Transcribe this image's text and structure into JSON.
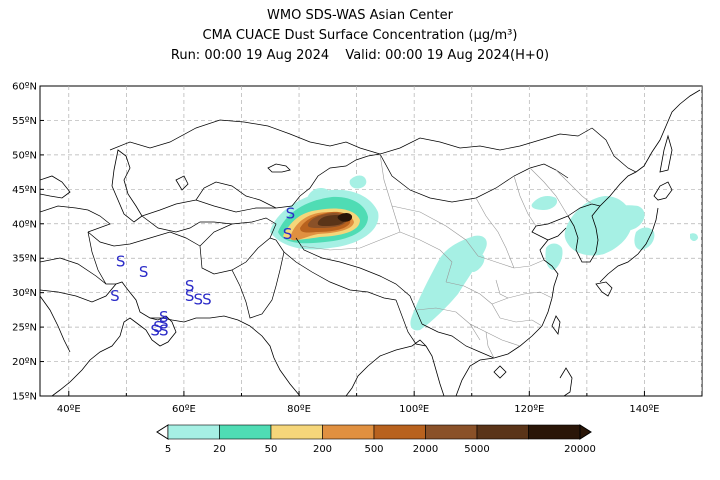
{
  "title": {
    "line1": "WMO SDS-WAS Asian Center",
    "line2": "CMA CUACE Dust Surface Concentration (μg/m³)",
    "run_label": "Run: 00:00 19 Aug 2024",
    "valid_label": "Valid: 00:00 19 Aug 2024(H+0)"
  },
  "map": {
    "lon_range": [
      35,
      150
    ],
    "lat_range": [
      15,
      60
    ],
    "lat_ticks": [
      "60ºN",
      "55ºN",
      "50ºN",
      "45ºN",
      "40ºN",
      "35ºN",
      "30ºN",
      "25ºN",
      "20ºN",
      "15ºN"
    ],
    "lon_ticks": [
      "40ºE",
      "60ºE",
      "80ºE",
      "100ºE",
      "120ºE",
      "140ºE"
    ],
    "grid": true,
    "dust_symbol": "S",
    "dust_symbol_color": "#2c2cc8",
    "dust_symbols_lonlat": [
      [
        49,
        34.5
      ],
      [
        53,
        33
      ],
      [
        48,
        29.5
      ],
      [
        61,
        31
      ],
      [
        61,
        29.5
      ],
      [
        62.5,
        29
      ],
      [
        64,
        29
      ],
      [
        56.5,
        26.5
      ],
      [
        56.5,
        25.5
      ],
      [
        55.5,
        25
      ],
      [
        56.5,
        24.5
      ],
      [
        55,
        24.5
      ],
      [
        78.5,
        41.5
      ],
      [
        78,
        38.5
      ]
    ]
  },
  "colorbar": {
    "labels": [
      "5",
      "20",
      "50",
      "200",
      "500",
      "2000",
      "5000",
      "20000"
    ],
    "colors": [
      "#a6f0e4",
      "#4fdcb4",
      "#f5d67a",
      "#e09040",
      "#b8621e",
      "#8a5128",
      "#5a3418",
      "#2a1608"
    ]
  }
}
